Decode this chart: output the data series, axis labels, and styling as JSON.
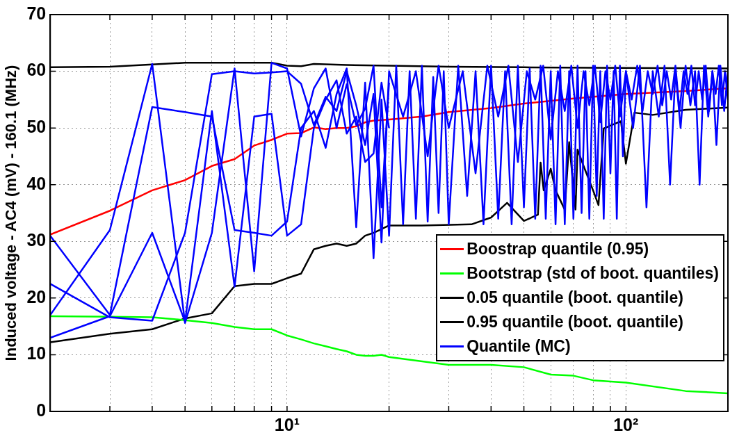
{
  "chart_data": {
    "type": "line",
    "ylabel": "Induced voltage - AC4 (mV) - 160.1 (MHz)",
    "log": "x",
    "grid": true,
    "legend": "bottom right",
    "xlim": [
      2,
      200
    ],
    "xticks": [
      {
        "value": 3,
        "label": null
      },
      {
        "value": 4,
        "label": null
      },
      {
        "value": 5,
        "label": null
      },
      {
        "value": 6,
        "label": null
      },
      {
        "value": 7,
        "label": null
      },
      {
        "value": 8,
        "label": null
      },
      {
        "value": 9,
        "label": null
      },
      {
        "value": 10,
        "label": "10¹"
      },
      {
        "value": 20,
        "label": null
      },
      {
        "value": 30,
        "label": null
      },
      {
        "value": 40,
        "label": null
      },
      {
        "value": 50,
        "label": null
      },
      {
        "value": 60,
        "label": null
      },
      {
        "value": 70,
        "label": null
      },
      {
        "value": 80,
        "label": null
      },
      {
        "value": 90,
        "label": null
      },
      {
        "value": 100,
        "label": "10²"
      }
    ],
    "ylim": [
      0,
      70
    ],
    "yticks": [
      0,
      10,
      20,
      30,
      40,
      50,
      60,
      70
    ],
    "series": [
      {
        "name": "Quantile (MC)",
        "color": "#0000ff",
        "x": [
          2,
          3,
          4,
          5,
          6,
          7,
          8,
          9,
          10,
          11,
          12,
          13,
          14,
          15,
          16,
          17,
          18,
          19,
          20,
          21,
          22,
          23,
          24,
          25,
          26,
          27,
          28,
          29,
          30,
          32,
          34,
          36,
          38,
          40,
          42,
          44,
          46,
          48,
          50,
          52,
          54,
          56,
          58,
          60,
          62,
          64,
          66,
          68,
          70,
          72,
          74,
          76,
          78,
          80,
          82,
          84,
          86,
          88,
          90,
          92,
          94,
          96,
          98,
          100,
          105,
          110,
          115,
          120,
          125,
          130,
          135,
          140,
          145,
          150,
          155,
          160,
          165,
          170,
          175,
          180,
          185,
          190,
          195,
          200
        ],
        "values": [
          31,
          17,
          53.7,
          52.8,
          52,
          32,
          31.5,
          31,
          33.5,
          50,
          53,
          46.5,
          56,
          60.5,
          32.5,
          58,
          27,
          55,
          31,
          61,
          33,
          60,
          34,
          61,
          33.5,
          59,
          35,
          60,
          33,
          61,
          38,
          60,
          33,
          61,
          34,
          60,
          33,
          61,
          36,
          60.5,
          34,
          61,
          34,
          60,
          33,
          61,
          33,
          60,
          34,
          61,
          35,
          60,
          34,
          61,
          38,
          60,
          34,
          61,
          42,
          60,
          34,
          61,
          45,
          60,
          50,
          61,
          36,
          60,
          52,
          61,
          40,
          60,
          50,
          61,
          54,
          60,
          40,
          61,
          52,
          60,
          47,
          61,
          53,
          60
        ]
      },
      {
        "name": null,
        "color": "#0000ff",
        "x": [
          2,
          3,
          4,
          5,
          6,
          7,
          8,
          9,
          10,
          11,
          12,
          13,
          14,
          15,
          16,
          17,
          18,
          19,
          20,
          22,
          24,
          26,
          28,
          30,
          33,
          36,
          39,
          42,
          45,
          48,
          51,
          54,
          57,
          60,
          63,
          66,
          69,
          72,
          75,
          78,
          81,
          84,
          87,
          90,
          93,
          96,
          100,
          104,
          108,
          112,
          116,
          120,
          124,
          128,
          132,
          136,
          140,
          144,
          148,
          152,
          156,
          160,
          164,
          168,
          172,
          176,
          180,
          184,
          188,
          192,
          196,
          200
        ],
        "values": [
          22.5,
          16.6,
          16,
          31.5,
          59.5,
          60,
          59.6,
          59.8,
          60,
          57.8,
          50.5,
          55.5,
          53,
          60,
          54,
          47,
          56,
          29.8,
          60,
          52,
          60,
          45,
          61,
          50,
          60,
          42,
          61,
          52,
          61,
          44,
          60,
          55,
          61,
          48,
          60,
          53,
          61,
          50,
          60,
          54,
          61,
          51,
          60,
          55,
          61,
          52,
          60,
          55,
          61,
          53,
          60,
          56,
          61,
          54,
          60,
          55,
          61,
          53,
          60,
          56,
          61,
          54,
          60,
          55,
          61,
          53,
          60,
          56,
          61,
          54,
          60,
          55
        ]
      },
      {
        "name": null,
        "color": "#0000ff",
        "x": [
          2,
          3,
          4,
          5,
          6,
          7,
          8,
          9,
          10,
          11,
          12,
          13,
          14,
          15,
          16,
          17,
          18,
          19,
          20
        ],
        "values": [
          17,
          32,
          61.3,
          15.6,
          31.5,
          60.5,
          24.7,
          61.5,
          60.5,
          48.5,
          57,
          60.5,
          50,
          57.7,
          50.5,
          53.4,
          61,
          36,
          58
        ]
      },
      {
        "name": null,
        "color": "#0000ff",
        "x": [
          2,
          3,
          4,
          5,
          6,
          7,
          8,
          9,
          10,
          11,
          12,
          13,
          14,
          15,
          16,
          17,
          18,
          19,
          20
        ],
        "values": [
          13,
          16.8,
          31.5,
          15.8,
          53,
          22,
          52,
          52.5,
          31,
          33,
          50,
          55,
          58.4,
          49,
          52,
          44,
          45.5,
          58,
          50
        ]
      },
      {
        "name": "Boostrap quantile (0.95)",
        "color": "#ff0000",
        "x": [
          2,
          3,
          4,
          5,
          6,
          7,
          8,
          9,
          10,
          11,
          12,
          13,
          14,
          15,
          16,
          17,
          18,
          20,
          25,
          30,
          40,
          50,
          70,
          100,
          150,
          200
        ],
        "values": [
          31.2,
          35.4,
          39,
          40.8,
          43.3,
          44.5,
          46.9,
          47.9,
          49,
          49.1,
          50.1,
          49.8,
          50,
          50,
          50.3,
          51,
          51.3,
          51.5,
          52,
          52.8,
          53.5,
          54.3,
          55.2,
          56,
          56.5,
          57
        ]
      },
      {
        "name": "Bootstrap (std of boot. quantiles)",
        "color": "#00ff00",
        "x": [
          2,
          3,
          4,
          5,
          6,
          7,
          8,
          9,
          10,
          11,
          12,
          13,
          14,
          15,
          16,
          17,
          18,
          19,
          20,
          30,
          40,
          50,
          60,
          70,
          80,
          100,
          150,
          200
        ],
        "values": [
          16.8,
          16.7,
          16.6,
          16.1,
          15.6,
          14.9,
          14.5,
          14.5,
          13.4,
          12.7,
          12,
          11.5,
          11,
          10.6,
          10,
          9.8,
          9.8,
          10,
          9.6,
          8.2,
          8.2,
          7.8,
          6.5,
          6.3,
          5.5,
          5.1,
          3.6,
          3.2
        ]
      },
      {
        "name": "0.05 quantile (boot. quantile)",
        "color": "#000000",
        "x": [
          2,
          3,
          4,
          5,
          6,
          7,
          8,
          9,
          10,
          11,
          12,
          13,
          14,
          15,
          16,
          17,
          18,
          20,
          25,
          35,
          40,
          44.6,
          50,
          55,
          56,
          57.2,
          60,
          62,
          66,
          68,
          71,
          72,
          75,
          80,
          83,
          86,
          96.7,
          100,
          106,
          120,
          150,
          200
        ],
        "values": [
          12.2,
          13.7,
          14.5,
          16.4,
          17.3,
          22.1,
          22.5,
          22.5,
          23.5,
          24.3,
          28.6,
          29.2,
          29.6,
          29.2,
          29.6,
          31,
          31.5,
          32.8,
          32.8,
          33,
          34.2,
          36.8,
          33.6,
          34.7,
          43.9,
          39,
          42.8,
          39,
          35.6,
          47.5,
          35.6,
          46.2,
          43.3,
          39,
          36.4,
          49.9,
          51.2,
          43.7,
          52.7,
          52.3,
          53.2,
          53.6
        ]
      },
      {
        "name": "0.95 quantile (boot. quantile)",
        "color": "#000000",
        "x": [
          2,
          3,
          4,
          5,
          7,
          9,
          10,
          11,
          12,
          15,
          20,
          30,
          50,
          100,
          200
        ],
        "values": [
          60.7,
          60.8,
          61.2,
          61.5,
          61.5,
          61.5,
          61,
          60.9,
          61.3,
          61.1,
          61,
          60.8,
          60.7,
          60.6,
          60.5
        ]
      }
    ]
  }
}
